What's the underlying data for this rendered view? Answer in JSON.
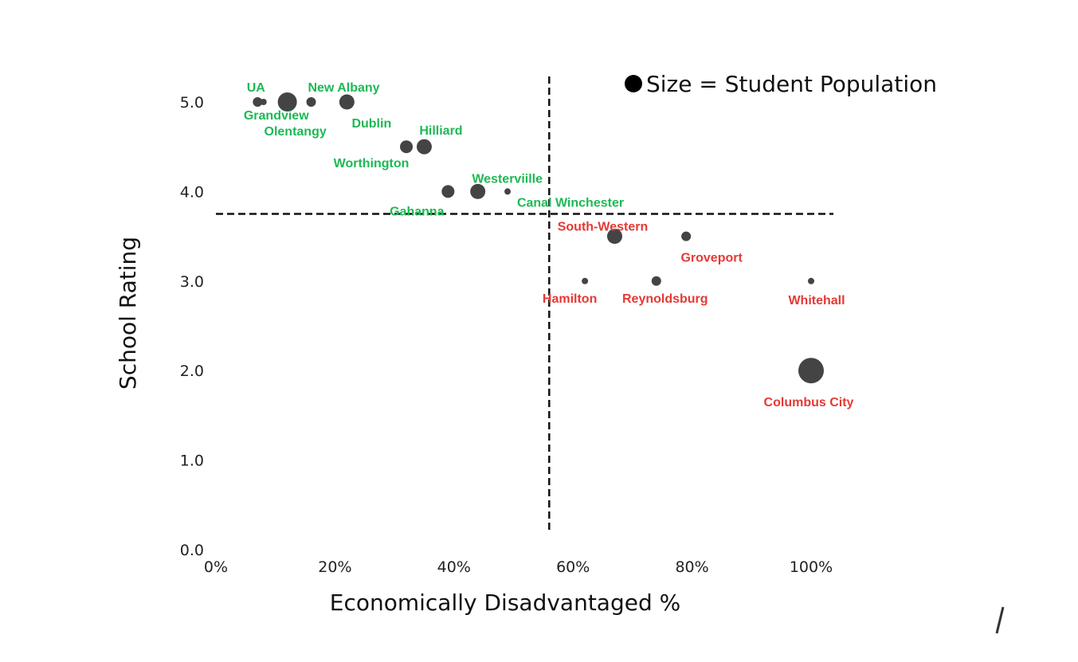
{
  "colors": {
    "marker": "#444444",
    "above_label": "#1db954",
    "below_label": "#e53935"
  },
  "chart_data": {
    "type": "scatter",
    "title": "",
    "xlabel": "Economically Disadvantaged %",
    "ylabel": "School Rating",
    "xlim": [
      0,
      100
    ],
    "ylim": [
      0,
      5
    ],
    "x_ticks": [
      "0%",
      "20%",
      "40%",
      "60%",
      "80%",
      "100%"
    ],
    "x_tick_values": [
      0,
      20,
      40,
      60,
      80,
      100
    ],
    "y_ticks": [
      "0.0",
      "1.0",
      "2.0",
      "3.0",
      "4.0",
      "5.0"
    ],
    "y_tick_values": [
      0,
      1,
      2,
      3,
      4,
      5
    ],
    "grid": false,
    "legend": {
      "text": "Size = Student Population",
      "placement": "top-right"
    },
    "reference_lines": {
      "vertical_x": 56,
      "horizontal_y": 3.75
    },
    "points": [
      {
        "label": "UA",
        "x": 7,
        "y": 5.0,
        "size": "small",
        "group": "above"
      },
      {
        "label": "Grandview",
        "x": 8,
        "y": 5.0,
        "size": "tiny",
        "group": "above"
      },
      {
        "label": "Olentangy",
        "x": 12,
        "y": 5.0,
        "size": "large",
        "group": "above"
      },
      {
        "label": "",
        "x": 13,
        "y": 5.0,
        "size": "tiny",
        "group": "above"
      },
      {
        "label": "New Albany",
        "x": 16,
        "y": 5.0,
        "size": "small",
        "group": "above"
      },
      {
        "label": "Dublin",
        "x": 22,
        "y": 5.0,
        "size": "medium",
        "group": "above"
      },
      {
        "label": "Worthington",
        "x": 32,
        "y": 4.5,
        "size": "small-medium",
        "group": "above"
      },
      {
        "label": "Hilliard",
        "x": 35,
        "y": 4.5,
        "size": "medium",
        "group": "above"
      },
      {
        "label": "Gahanna",
        "x": 39,
        "y": 4.0,
        "size": "small-medium",
        "group": "above"
      },
      {
        "label": "Westerviille",
        "x": 44,
        "y": 4.0,
        "size": "medium",
        "group": "above"
      },
      {
        "label": "Canal Winchester",
        "x": 49,
        "y": 4.0,
        "size": "tiny",
        "group": "above"
      },
      {
        "label": "Hamilton",
        "x": 62,
        "y": 3.0,
        "size": "tiny",
        "group": "below"
      },
      {
        "label": "South-Western",
        "x": 67,
        "y": 3.5,
        "size": "medium",
        "group": "below"
      },
      {
        "label": "Reynoldsburg",
        "x": 74,
        "y": 3.0,
        "size": "small",
        "group": "below"
      },
      {
        "label": "Groveport",
        "x": 79,
        "y": 3.5,
        "size": "small",
        "group": "below"
      },
      {
        "label": "Whitehall",
        "x": 100,
        "y": 3.0,
        "size": "tiny",
        "group": "below"
      },
      {
        "label": "Columbus City",
        "x": 100,
        "y": 2.0,
        "size": "xlarge",
        "group": "below"
      }
    ]
  }
}
